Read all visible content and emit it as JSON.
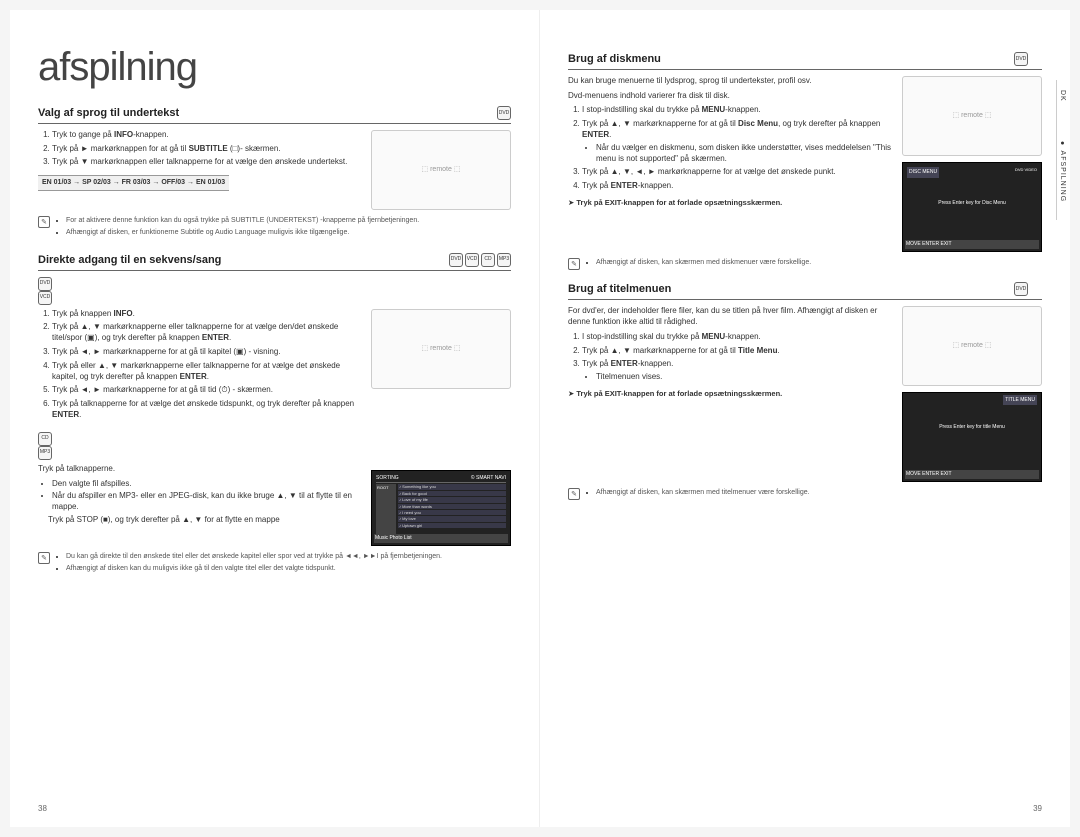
{
  "left": {
    "title": "afspilning",
    "s1": {
      "heading": "Valg af sprog til undertekst",
      "li1_a": "Tryk to gange på ",
      "li1_b": "INFO",
      "li1_c": "-knappen.",
      "li2_a": "Tryk på ► markørknappen for at gå til ",
      "li2_b": "SUBTITLE",
      "li2_c": " (",
      "li2_d": ")- skærmen.",
      "li3": "Tryk på ▼ markørknappen eller talknapperne for at vælge den ønskede undertekst.",
      "code": "EN 01/03 → SP 02/03 → FR 03/03 → OFF/03 → EN 01/03",
      "note1": "For at aktivere denne funktion kan du også trykke på SUBTITLE (UNDERTEKST) -knapperne på fjernbetjeningen.",
      "note2": "Afhængigt af disken, er funktionerne Subtitle og Audio Language muligvis ikke tilgængelige."
    },
    "s2": {
      "heading": "Direkte adgang til en sekvens/sang",
      "li1_a": "Tryk på knappen ",
      "li1_b": "INFO",
      "li1_c": ".",
      "li2_a": "Tryk på ▲, ▼ markørknapperne eller talknapperne for at vælge den/det ønskede titel/spor (",
      "li2_b": "), og tryk derefter på knappen ",
      "li2_c": "ENTER",
      "li2_d": ".",
      "li3_a": "Tryk på ◄, ► markørknapperne for at gå til kapitel (",
      "li3_b": ") - visning.",
      "li4_a": "Tryk på eller ▲, ▼ markørknapperne eller talknapperne for at vælge det ønskede kapitel, og tryk derefter på knappen ",
      "li4_b": "ENTER",
      "li4_c": ".",
      "li5_a": "Tryk på ◄, ► markørknapperne for at gå til tid (",
      "li5_b": ") - skærmen.",
      "li6_a": "Tryk på talknapperne for at vælge det ønskede tidspunkt, og tryk derefter på knappen ",
      "li6_b": "ENTER",
      "li6_c": ".",
      "sub1": "Tryk på talknapperne.",
      "sub_b1": "Den valgte fil afspilles.",
      "sub_b2": "Når du afspiller en MP3- eller en JPEG-disk, kan du ikke bruge ▲, ▼ til at flytte til en mappe.",
      "sub_stop": "Tryk på STOP (■), og tryk derefter på ▲, ▼ for at flytte en mappe",
      "playlist_h": "SORTING",
      "playlist_h2": "© SMART NAVI",
      "playlist": [
        "Something like you",
        "Back for good",
        "Love of my life",
        "More than words",
        "I need you",
        "My love",
        "Uptown girl"
      ],
      "pl_bottom": "Music   Photo   List",
      "note1": "Du kan gå direkte til den ønskede titel eller det ønskede kapitel eller spor ved at trykke på ◄◄, ►►I på fjernbetjeningen.",
      "note2": "Afhængigt af disken kan du muligvis ikke gå til den valgte titel eller det valgte tidspunkt."
    },
    "page_num": "38"
  },
  "right": {
    "s1": {
      "heading": "Brug af diskmenu",
      "intro": "Du kan bruge menuerne til lydsprog, sprog til undertekster, profil osv.",
      "intro2": "Dvd-menuens indhold varierer fra disk til disk.",
      "li1_a": "I stop-indstilling skal du trykke på ",
      "li1_b": "MENU",
      "li1_c": "-knappen.",
      "li2_a": "Tryk på ▲, ▼ markørknapperne for at gå til ",
      "li2_b": "Disc Menu",
      "li2_c": ", og tryk derefter på knappen ",
      "li2_d": "ENTER",
      "li2_e": ".",
      "li2_sub": "Når du vælger en diskmenu, som disken ikke understøtter, vises meddelelsen \"This menu is not supported\" på skærmen.",
      "li3": "Tryk på ▲, ▼, ◄, ► markørknapperne for at vælge det ønskede punkt.",
      "li4_a": "Tryk på ",
      "li4_b": "ENTER",
      "li4_c": "-knappen.",
      "exit": "Tryk på EXIT-knappen for at forlade opsætningsskærmen.",
      "screen_title": "DISC MENU",
      "screen_top": "DVD   VIDEO",
      "screen_text": "Press Enter key for Disc Menu",
      "screen_bottom": "MOVE    ENTER    EXIT",
      "note": "Afhængigt af disken, kan skærmen med diskmenuer være forskellige."
    },
    "s2": {
      "heading": "Brug af titelmenuen",
      "intro": "For dvd'er, der indeholder flere filer, kan du se titlen på hver film. Afhængigt af disken er denne funktion ikke altid til rådighed.",
      "li1_a": "I stop-indstilling skal du trykke på ",
      "li1_b": "MENU",
      "li1_c": "-knappen.",
      "li2_a": "Tryk på ▲, ▼ markørknapperne for at gå til ",
      "li2_b": "Title Menu",
      "li2_c": ".",
      "li3_a": "Tryk på ",
      "li3_b": "ENTER",
      "li3_c": "-knappen.",
      "li3_sub": "Titelmenuen vises.",
      "exit": "Tryk på EXIT-knappen for at forlade opsætningsskærmen.",
      "screen_title": "TITLE MENU",
      "screen_text": "Press Enter key for title Menu",
      "screen_bottom": "MOVE    ENTER    EXIT",
      "note": "Afhængigt af disken, kan skærmen med titelmenuer være forskellige."
    },
    "side1": "DK",
    "side2": "● AFSPILNING",
    "page_num": "39"
  }
}
